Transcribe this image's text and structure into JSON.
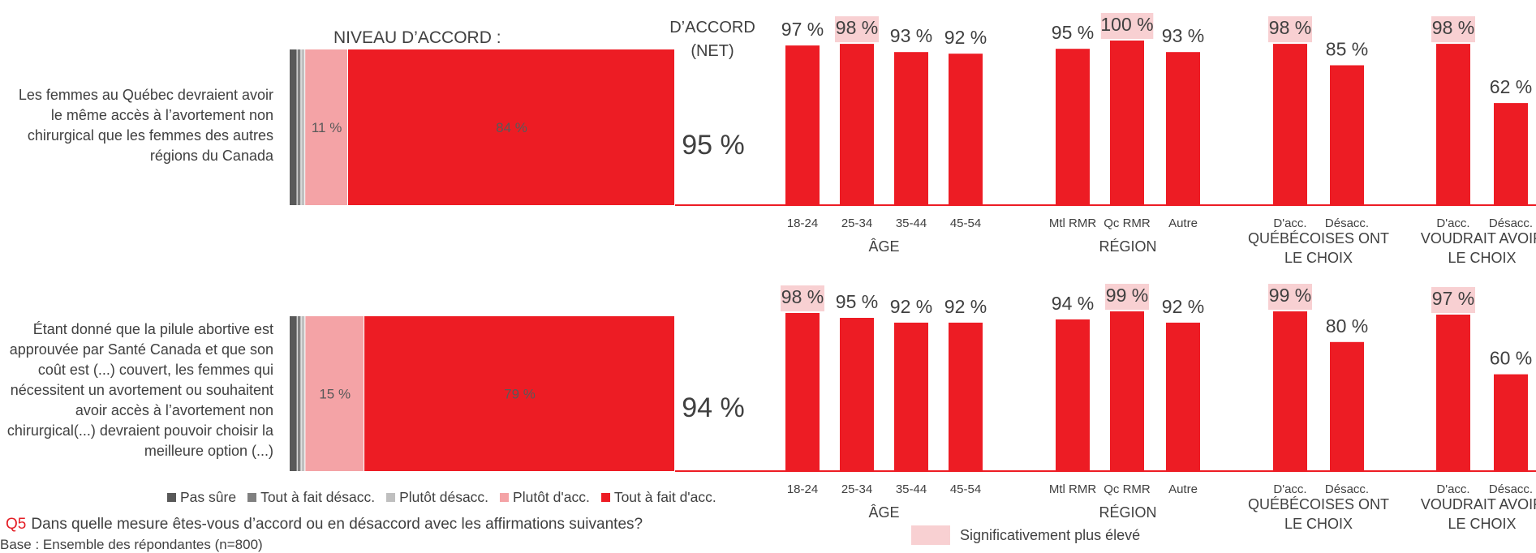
{
  "colors": {
    "pas_sure": "#595959",
    "tout_desacc": "#808080",
    "plutot_desacc": "#bfbfbf",
    "plutot_acc": "#f4a3a6",
    "tout_acc": "#ed1c24",
    "highlight": "#f8d0d2"
  },
  "header": {
    "niveau": "NIVEAU D’ACCORD :",
    "net_line1": "D’ACCORD",
    "net_line2": "(NET)"
  },
  "legend": {
    "pas_sure": "Pas sûre",
    "tout_desacc": "Tout à fait désacc.",
    "plutot_desacc": "Plutôt désacc.",
    "plutot_acc": "Plutôt d'acc.",
    "tout_acc": "Tout à fait d'acc."
  },
  "question": {
    "number": "Q5",
    "text": "Dans quelle mesure êtes-vous d’accord ou en désaccord avec les affirmations suivantes?"
  },
  "base": "Base : Ensemble des répondantes (n=800)",
  "significance_label": "Significativement plus élevé",
  "chart_data": {
    "type": "bar",
    "segment_order": [
      "pas_sure",
      "tout_desacc",
      "plutot_desacc",
      "plutot_acc",
      "tout_acc"
    ],
    "groups": [
      {
        "name": "ÂGE",
        "categories": [
          "18-24",
          "25-34",
          "35-44",
          "45-54"
        ]
      },
      {
        "name": "RÉGION",
        "categories": [
          "Mtl RMR",
          "Qc RMR",
          "Autre"
        ]
      },
      {
        "name": "QUÉBÉCOISES ONT LE CHOIX",
        "name_lines": [
          "QUÉBÉCOISES ONT",
          "LE CHOIX"
        ],
        "categories": [
          "D'acc.",
          "Désacc."
        ]
      },
      {
        "name": "VOUDRAIT AVOIR LE CHOIX",
        "name_lines": [
          "VOUDRAIT AVOIR",
          "LE CHOIX"
        ],
        "categories": [
          "D'acc.",
          "Désacc."
        ]
      }
    ],
    "statements": [
      {
        "text": "Les femmes au Québec devraient avoir le même accès à l’avortement non chirurgical que les femmes des autres régions du Canada",
        "stack": {
          "pas_sure": 2,
          "tout_desacc": 1,
          "plutot_desacc": 1,
          "plutot_acc": 11,
          "tout_acc": 84
        },
        "stack_labels": {
          "plutot_acc": "11 %",
          "tout_acc": "84 %"
        },
        "net": "95 %",
        "subgroups": [
          {
            "values": [
              97,
              98,
              93,
              92
            ],
            "labels": [
              "97 %",
              "98 %",
              "93 %",
              "92 %"
            ],
            "significant": [
              false,
              true,
              false,
              false
            ]
          },
          {
            "values": [
              95,
              100,
              93
            ],
            "labels": [
              "95 %",
              "100 %",
              "93 %"
            ],
            "significant": [
              false,
              true,
              false
            ]
          },
          {
            "values": [
              98,
              85
            ],
            "labels": [
              "98 %",
              "85 %"
            ],
            "significant": [
              true,
              false
            ]
          },
          {
            "values": [
              98,
              62
            ],
            "labels": [
              "98 %",
              "62 %"
            ],
            "significant": [
              true,
              false
            ]
          }
        ]
      },
      {
        "text": "Étant donné que la pilule abortive est approuvée par Santé Canada et que son coût est (...) couvert, les femmes qui nécessitent un avortement ou souhaitent avoir accès à l’avortement non chirurgical(...) devraient pouvoir choisir la meilleure option (...)",
        "stack": {
          "pas_sure": 2,
          "tout_desacc": 1,
          "plutot_desacc": 1,
          "plutot_acc": 15,
          "tout_acc": 79
        },
        "stack_labels": {
          "plutot_acc": "15 %",
          "tout_acc": "79 %"
        },
        "net": "94 %",
        "subgroups": [
          {
            "values": [
              98,
              95,
              92,
              92
            ],
            "labels": [
              "98 %",
              "95 %",
              "92 %",
              "92 %"
            ],
            "significant": [
              true,
              false,
              false,
              false
            ]
          },
          {
            "values": [
              94,
              99,
              92
            ],
            "labels": [
              "94 %",
              "99 %",
              "92 %"
            ],
            "significant": [
              false,
              true,
              false
            ]
          },
          {
            "values": [
              99,
              80
            ],
            "labels": [
              "99 %",
              "80 %"
            ],
            "significant": [
              true,
              false
            ]
          },
          {
            "values": [
              97,
              60
            ],
            "labels": [
              "97 %",
              "60 %"
            ],
            "significant": [
              true,
              false
            ]
          }
        ]
      }
    ]
  }
}
